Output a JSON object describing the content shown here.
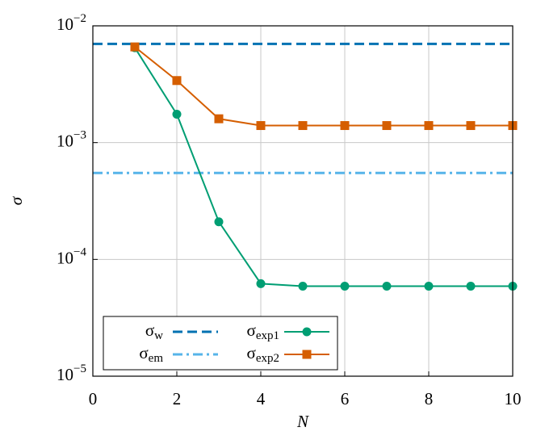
{
  "chart_data": {
    "type": "line",
    "xlabel": "N",
    "ylabel": "σ",
    "xlim": [
      0,
      10
    ],
    "xticks": [
      0,
      2,
      4,
      6,
      8,
      10
    ],
    "ylim": [
      1e-05,
      0.01
    ],
    "log_y": true,
    "yticks": [
      {
        "value": 1e-05,
        "label": "10−5"
      },
      {
        "value": 0.0001,
        "label": "10−4"
      },
      {
        "value": 0.001,
        "label": "10−3"
      },
      {
        "value": 0.01,
        "label": "10−2"
      }
    ],
    "grid": true,
    "legend": "lower left",
    "series": [
      {
        "name": "σw",
        "color": "#0072b2",
        "linestyle": "dashed",
        "x": [
          0,
          10
        ],
        "values": [
          0.007,
          0.007
        ]
      },
      {
        "name": "σem",
        "color": "#56b4e9",
        "linestyle": "dashdot",
        "x": [
          0,
          10
        ],
        "values": [
          0.00055,
          0.00055
        ]
      },
      {
        "name": "σexp1",
        "color": "#009e73",
        "linestyle": "solid",
        "marker": "circle",
        "x": [
          1,
          2,
          3,
          4,
          5,
          6,
          7,
          8,
          9,
          10
        ],
        "values": [
          0.0065,
          0.00175,
          0.00021,
          6.2e-05,
          5.9e-05,
          5.9e-05,
          5.9e-05,
          5.9e-05,
          5.9e-05,
          5.9e-05
        ]
      },
      {
        "name": "σexp2",
        "color": "#d55e00",
        "linestyle": "solid",
        "marker": "square",
        "x": [
          1,
          2,
          3,
          4,
          5,
          6,
          7,
          8,
          9,
          10
        ],
        "values": [
          0.0066,
          0.0034,
          0.0016,
          0.0014,
          0.0014,
          0.0014,
          0.0014,
          0.0014,
          0.0014,
          0.0014
        ]
      }
    ]
  }
}
